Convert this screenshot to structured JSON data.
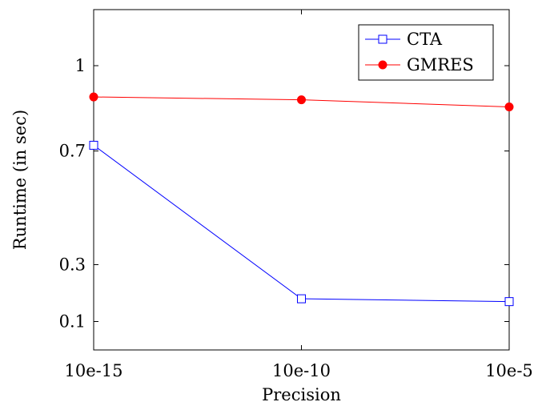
{
  "chart_data": {
    "type": "line",
    "title": "",
    "xlabel": "Precision",
    "ylabel": "Runtime (in sec)",
    "categories": [
      "10e-15",
      "10e-10",
      "10e-5"
    ],
    "yticks": [
      0.1,
      0.3,
      0.7,
      1
    ],
    "ytick_labels": [
      "0.1",
      "0.3",
      "0.7",
      "1"
    ],
    "ylim": [
      0,
      1.2
    ],
    "grid": false,
    "legend_position": "top-right",
    "series": [
      {
        "name": "CTA",
        "values": [
          0.72,
          0.18,
          0.17
        ],
        "color": "#0000ff",
        "marker": "square-open"
      },
      {
        "name": "GMRES",
        "values": [
          0.89,
          0.88,
          0.855
        ],
        "color": "#ff0000",
        "marker": "circle-filled"
      }
    ]
  }
}
